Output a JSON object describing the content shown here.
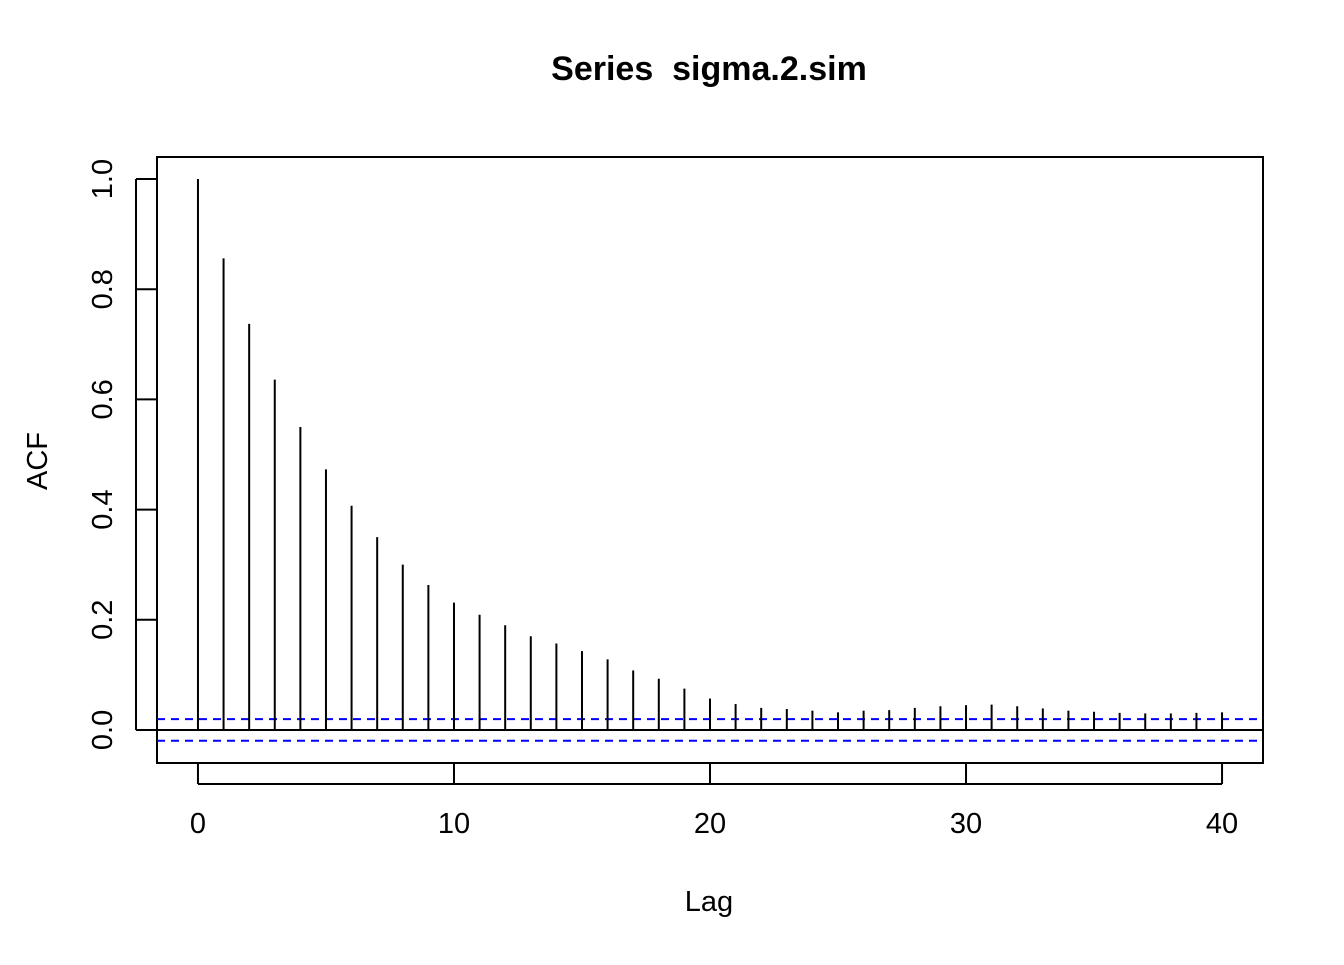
{
  "chart_data": {
    "type": "bar",
    "title": "Series  sigma.2.sim",
    "xlabel": "Lag",
    "ylabel": "ACF",
    "xlim": [
      -1.6,
      41.6
    ],
    "ylim": [
      -0.06,
      1.04
    ],
    "x_ticks": [
      0,
      10,
      20,
      30,
      40
    ],
    "x_tick_labels": [
      "0",
      "10",
      "20",
      "30",
      "40"
    ],
    "y_ticks": [
      0.0,
      0.2,
      0.4,
      0.6,
      0.8,
      1.0
    ],
    "y_tick_labels": [
      "0.0",
      "0.2",
      "0.4",
      "0.6",
      "0.8",
      "1.0"
    ],
    "lags": [
      0,
      1,
      2,
      3,
      4,
      5,
      6,
      7,
      8,
      9,
      10,
      11,
      12,
      13,
      14,
      15,
      16,
      17,
      18,
      19,
      20,
      21,
      22,
      23,
      24,
      25,
      26,
      27,
      28,
      29,
      30,
      31,
      32,
      33,
      34,
      35,
      36,
      37,
      38,
      39,
      40
    ],
    "values": [
      1.0,
      0.856,
      0.737,
      0.636,
      0.55,
      0.473,
      0.407,
      0.35,
      0.3,
      0.263,
      0.231,
      0.209,
      0.19,
      0.17,
      0.157,
      0.143,
      0.128,
      0.108,
      0.093,
      0.075,
      0.057,
      0.047,
      0.04,
      0.038,
      0.035,
      0.032,
      0.035,
      0.036,
      0.04,
      0.043,
      0.045,
      0.046,
      0.043,
      0.039,
      0.035,
      0.033,
      0.031,
      0.03,
      0.03,
      0.031,
      0.032
    ],
    "confidence_bound": 0.0196,
    "grid": false,
    "legend": "none",
    "colors": {
      "bars": "#000000",
      "zero_line": "#000000",
      "confidence_lines": "#0000ff",
      "frame": "#000000"
    }
  }
}
